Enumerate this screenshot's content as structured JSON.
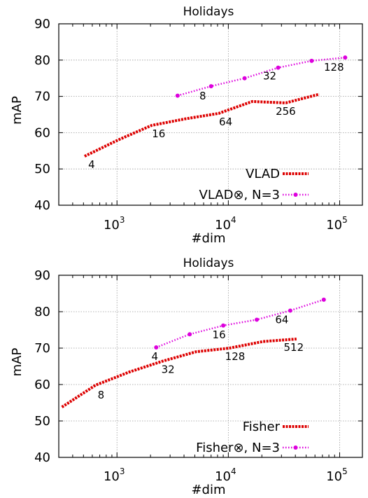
{
  "chart_data": [
    {
      "type": "line",
      "title": "Holidays",
      "xlabel": "#dim",
      "ylabel": "mAP",
      "xscale": "log",
      "xlim": [
        300,
        160000
      ],
      "ylim": [
        40,
        90
      ],
      "yticks": [
        40,
        50,
        60,
        70,
        80,
        90
      ],
      "xticks": [
        {
          "base": "10",
          "exp": "3",
          "value": 1000
        },
        {
          "base": "10",
          "exp": "4",
          "value": 10000
        },
        {
          "base": "10",
          "exp": "5",
          "value": 100000
        }
      ],
      "grid": true,
      "legend_position": "bottom-right",
      "series": [
        {
          "name": "VLAD",
          "color": "#dd0000",
          "style": "dashed-thick",
          "x": [
            512,
            1024,
            2048,
            4096,
            8192,
            16384,
            32768,
            65536
          ],
          "y": [
            53.5,
            58.0,
            62.0,
            63.8,
            65.3,
            68.6,
            68.2,
            70.6
          ],
          "labels": [
            {
              "i": 0,
              "text": "4"
            },
            {
              "i": 2,
              "text": "16"
            },
            {
              "i": 4,
              "text": "64"
            },
            {
              "i": 6,
              "text": "256"
            }
          ]
        },
        {
          "name": "VLAD⊗, N=3",
          "color": "#dd00dd",
          "style": "dotted-points",
          "x": [
            3500,
            7000,
            14000,
            28000,
            56000,
            112000
          ],
          "y": [
            70.2,
            72.8,
            75.0,
            77.9,
            79.8,
            80.7
          ],
          "labels": [
            {
              "i": 1,
              "text": "8"
            },
            {
              "i": 3,
              "text": "32"
            },
            {
              "i": 5,
              "text": "128"
            }
          ]
        }
      ]
    },
    {
      "type": "line",
      "title": "Holidays",
      "xlabel": "#dim",
      "ylabel": "mAP",
      "xscale": "log",
      "xlim": [
        300,
        160000
      ],
      "ylim": [
        40,
        90
      ],
      "yticks": [
        40,
        50,
        60,
        70,
        80,
        90
      ],
      "xticks": [
        {
          "base": "10",
          "exp": "3",
          "value": 1000
        },
        {
          "base": "10",
          "exp": "4",
          "value": 10000
        },
        {
          "base": "10",
          "exp": "5",
          "value": 100000
        }
      ],
      "grid": true,
      "legend_position": "bottom-right",
      "series": [
        {
          "name": "Fisher",
          "color": "#dd0000",
          "style": "dashed-thick",
          "x": [
            320,
            640,
            1280,
            2560,
            5120,
            10240,
            20480,
            40960
          ],
          "y": [
            53.8,
            59.8,
            63.4,
            66.4,
            69.0,
            70.0,
            71.8,
            72.5
          ],
          "labels": [
            {
              "i": 1,
              "text": "8"
            },
            {
              "i": 3,
              "text": "32"
            },
            {
              "i": 5,
              "text": "128"
            },
            {
              "i": 7,
              "text": "512"
            }
          ]
        },
        {
          "name": "Fisher⊗, N=3",
          "color": "#dd00dd",
          "style": "dotted-points",
          "x": [
            2250,
            4500,
            9000,
            18000,
            36000,
            72000
          ],
          "y": [
            70.2,
            73.8,
            76.2,
            77.8,
            80.3,
            83.3
          ],
          "labels": [
            {
              "i": 0,
              "text": "4"
            },
            {
              "i": 2,
              "text": "16"
            },
            {
              "i": 4,
              "text": "64"
            }
          ]
        }
      ]
    }
  ]
}
